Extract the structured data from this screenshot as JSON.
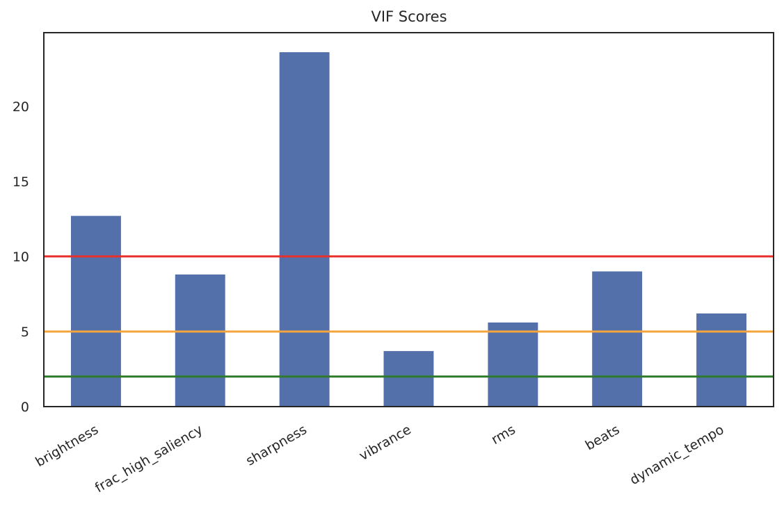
{
  "chart_data": {
    "type": "bar",
    "title": "VIF Scores",
    "xlabel": "",
    "ylabel": "",
    "categories": [
      "brightness",
      "frac_high_saliency",
      "sharpness",
      "vibrance",
      "rms",
      "beats",
      "dynamic_tempo"
    ],
    "values": [
      12.7,
      8.8,
      23.6,
      3.7,
      5.6,
      9.0,
      6.2
    ],
    "ylim": [
      0,
      24.9
    ],
    "yticks": [
      0,
      5,
      10,
      15,
      20
    ],
    "bar_color": "#5470ab",
    "reference_lines": [
      {
        "value": 10,
        "color": "#e8302a"
      },
      {
        "value": 5,
        "color": "#f3a43b"
      },
      {
        "value": 2,
        "color": "#2f7a2a"
      }
    ],
    "grid": false,
    "legend": "none"
  }
}
